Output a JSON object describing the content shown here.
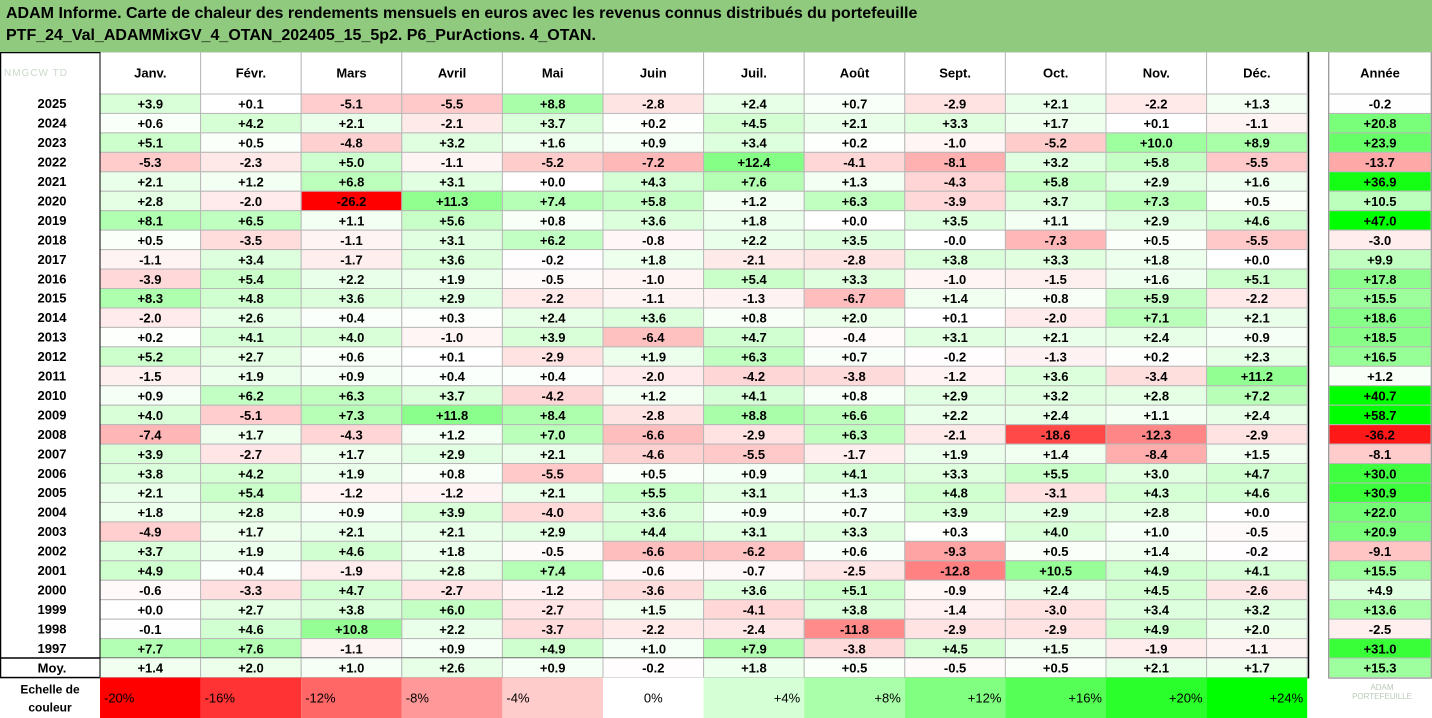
{
  "title": {
    "line1": "ADAM Informe. Carte de chaleur des rendements mensuels en euros avec les revenus connus distribués du portefeuille",
    "line2": "PTF_24_Val_ADAMMixGV_4_OTAN_202405_15_5p2. P6_PurActions. 4_OTAN."
  },
  "watermark": {
    "corner": "NMGCW TD",
    "scale": "ADAM PORTEFEUILLE"
  },
  "colors": {
    "negative_max": "#ff0000",
    "positive_max": "#00ff00",
    "neutral": "#ffffff",
    "grid_border": "#b8b8b8",
    "title_bg": "#8fca7f"
  },
  "chart_data": {
    "type": "heatmap",
    "columns": [
      "Janv.",
      "Févr.",
      "Mars",
      "Avril",
      "Mai",
      "Juin",
      "Juil.",
      "Août",
      "Sept.",
      "Oct.",
      "Nov.",
      "Déc."
    ],
    "annual_label": "Année",
    "rows": [
      {
        "year": "2025",
        "values": [
          3.9,
          0.1,
          -5.1,
          -5.5,
          8.8,
          -2.8,
          2.4,
          0.7,
          -2.9,
          2.1,
          -2.2,
          1.3
        ],
        "annual": -0.2
      },
      {
        "year": "2024",
        "values": [
          0.6,
          4.2,
          2.1,
          -2.1,
          3.7,
          0.2,
          4.5,
          2.1,
          3.3,
          1.7,
          0.1,
          -1.1
        ],
        "annual": 20.8
      },
      {
        "year": "2023",
        "values": [
          5.1,
          0.5,
          -4.8,
          3.2,
          1.6,
          0.9,
          3.4,
          0.2,
          -1.0,
          -5.2,
          10.0,
          8.9
        ],
        "annual": 23.9
      },
      {
        "year": "2022",
        "values": [
          -5.3,
          -2.3,
          5.0,
          -1.1,
          -5.2,
          -7.2,
          12.4,
          -4.1,
          -8.1,
          3.2,
          5.8,
          -5.5
        ],
        "annual": -13.7
      },
      {
        "year": "2021",
        "values": [
          2.1,
          1.2,
          6.8,
          3.1,
          0.0,
          4.3,
          7.6,
          1.3,
          -4.3,
          5.8,
          2.9,
          1.6
        ],
        "annual": 36.9
      },
      {
        "year": "2020",
        "values": [
          2.8,
          -2.0,
          -26.2,
          11.3,
          7.4,
          5.8,
          1.2,
          6.3,
          -3.9,
          3.7,
          7.3,
          0.5
        ],
        "annual": 10.5
      },
      {
        "year": "2019",
        "values": [
          8.1,
          6.5,
          1.1,
          5.6,
          0.8,
          3.6,
          1.8,
          0.0,
          3.5,
          1.1,
          2.9,
          4.6
        ],
        "annual": 47.0
      },
      {
        "year": "2018",
        "values": [
          0.5,
          -3.5,
          -1.1,
          3.1,
          6.2,
          -0.8,
          2.2,
          3.5,
          -0.0,
          -7.3,
          0.5,
          -5.5
        ],
        "annual": -3.0
      },
      {
        "year": "2017",
        "values": [
          -1.1,
          3.4,
          -1.7,
          3.6,
          -0.2,
          1.8,
          -2.1,
          -2.8,
          3.8,
          3.3,
          1.8,
          0.0
        ],
        "annual": 9.9
      },
      {
        "year": "2016",
        "values": [
          -3.9,
          5.4,
          2.2,
          1.9,
          -0.5,
          -1.0,
          5.4,
          3.3,
          -1.0,
          -1.5,
          1.6,
          5.1
        ],
        "annual": 17.8
      },
      {
        "year": "2015",
        "values": [
          8.3,
          4.8,
          3.6,
          2.9,
          -2.2,
          -1.1,
          -1.3,
          -6.7,
          1.4,
          0.8,
          5.9,
          -2.2
        ],
        "annual": 15.5
      },
      {
        "year": "2014",
        "values": [
          -2.0,
          2.6,
          0.4,
          0.3,
          2.4,
          3.6,
          0.8,
          2.0,
          0.1,
          -2.0,
          7.1,
          2.1
        ],
        "annual": 18.6
      },
      {
        "year": "2013",
        "values": [
          0.2,
          4.1,
          4.0,
          -1.0,
          3.9,
          -6.4,
          4.7,
          -0.4,
          3.1,
          2.1,
          2.4,
          0.9
        ],
        "annual": 18.5
      },
      {
        "year": "2012",
        "values": [
          5.2,
          2.7,
          0.6,
          0.1,
          -2.9,
          1.9,
          6.3,
          0.7,
          -0.2,
          -1.3,
          0.2,
          2.3
        ],
        "annual": 16.5
      },
      {
        "year": "2011",
        "values": [
          -1.5,
          1.9,
          0.9,
          0.4,
          0.4,
          -2.0,
          -4.2,
          -3.8,
          -1.2,
          3.6,
          -3.4,
          11.2
        ],
        "annual": 1.2
      },
      {
        "year": "2010",
        "values": [
          0.9,
          6.2,
          6.3,
          3.7,
          -4.2,
          1.2,
          4.1,
          0.8,
          2.9,
          3.2,
          2.8,
          7.2
        ],
        "annual": 40.7
      },
      {
        "year": "2009",
        "values": [
          4.0,
          -5.1,
          7.3,
          11.8,
          8.4,
          -2.8,
          8.8,
          6.6,
          2.2,
          2.4,
          1.1,
          2.4
        ],
        "annual": 58.7
      },
      {
        "year": "2008",
        "values": [
          -7.4,
          1.7,
          -4.3,
          1.2,
          7.0,
          -6.6,
          -2.9,
          6.3,
          -2.1,
          -18.6,
          -12.3,
          -2.9
        ],
        "annual": -36.2
      },
      {
        "year": "2007",
        "values": [
          3.9,
          -2.7,
          1.7,
          2.9,
          2.1,
          -4.6,
          -5.5,
          -1.7,
          1.9,
          1.4,
          -8.4,
          1.5
        ],
        "annual": -8.1
      },
      {
        "year": "2006",
        "values": [
          3.8,
          4.2,
          1.9,
          0.8,
          -5.5,
          0.5,
          0.9,
          4.1,
          3.3,
          5.5,
          3.0,
          4.7
        ],
        "annual": 30.0
      },
      {
        "year": "2005",
        "values": [
          2.1,
          5.4,
          -1.2,
          -1.2,
          2.1,
          5.5,
          3.1,
          1.3,
          4.8,
          -3.1,
          4.3,
          4.6
        ],
        "annual": 30.9
      },
      {
        "year": "2004",
        "values": [
          1.8,
          2.8,
          0.9,
          3.9,
          -4.0,
          3.6,
          0.9,
          0.7,
          3.9,
          2.9,
          2.8,
          0.0
        ],
        "annual": 22.0
      },
      {
        "year": "2003",
        "values": [
          -4.9,
          1.7,
          2.1,
          2.1,
          2.9,
          4.4,
          3.1,
          3.3,
          0.3,
          4.0,
          1.0,
          -0.5
        ],
        "annual": 20.9
      },
      {
        "year": "2002",
        "values": [
          3.7,
          1.9,
          4.6,
          1.8,
          -0.5,
          -6.6,
          -6.2,
          0.6,
          -9.3,
          0.5,
          1.4,
          -0.2
        ],
        "annual": -9.1
      },
      {
        "year": "2001",
        "values": [
          4.9,
          0.4,
          -1.9,
          2.8,
          7.4,
          -0.6,
          -0.7,
          -2.5,
          -12.8,
          10.5,
          4.9,
          4.1
        ],
        "annual": 15.5
      },
      {
        "year": "2000",
        "values": [
          -0.6,
          -3.3,
          4.7,
          -2.7,
          -1.2,
          -3.6,
          3.6,
          5.1,
          -0.9,
          2.4,
          4.5,
          -2.6
        ],
        "annual": 4.9
      },
      {
        "year": "1999",
        "values": [
          0.0,
          2.7,
          3.8,
          6.0,
          -2.7,
          1.5,
          -4.1,
          3.8,
          -1.4,
          -3.0,
          3.4,
          3.2
        ],
        "annual": 13.6
      },
      {
        "year": "1998",
        "values": [
          -0.1,
          4.6,
          10.8,
          2.2,
          -3.7,
          -2.2,
          -2.4,
          -11.8,
          -2.9,
          -2.9,
          4.9,
          2.0
        ],
        "annual": -2.5
      },
      {
        "year": "1997",
        "values": [
          7.7,
          7.6,
          -1.1,
          0.9,
          4.9,
          1.0,
          7.9,
          -3.8,
          4.5,
          1.5,
          -1.9,
          -1.1
        ],
        "annual": 31.0
      }
    ],
    "average": {
      "label": "Moy.",
      "values": [
        1.4,
        2.0,
        1.0,
        2.6,
        0.9,
        -0.2,
        1.8,
        0.5,
        -0.5,
        0.5,
        2.1,
        1.7
      ],
      "annual": 15.3
    },
    "scale": {
      "label_line1": "Echelle de",
      "label_line2": "couleur",
      "labels": [
        "-20%",
        "-16%",
        "-12%",
        "-8%",
        "-4%",
        "0%",
        "+4%",
        "+8%",
        "+12%",
        "+16%",
        "+20%",
        "+24%"
      ],
      "values": [
        -20,
        -16,
        -12,
        -8,
        -4,
        0,
        4,
        8,
        12,
        16,
        20,
        24
      ]
    }
  }
}
